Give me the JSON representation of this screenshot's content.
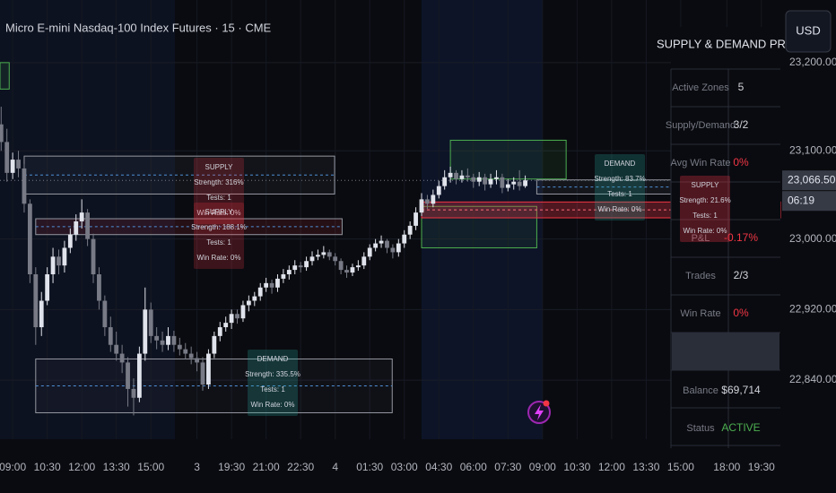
{
  "header": {
    "title": "Micro E-mini Nasdaq-100 Index Futures · 15 · CME",
    "currency": "USD"
  },
  "chart_data": {
    "type": "candlestick",
    "colors": {
      "up": "#e0e3eb",
      "down": "#787b86"
    },
    "xlim": [
      -2.2,
      133.3
    ],
    "xticks": [
      {
        "value": 0,
        "label": "09:00"
      },
      {
        "value": 6,
        "label": "10:30"
      },
      {
        "value": 12,
        "label": "12:00"
      },
      {
        "value": 18,
        "label": "13:30"
      },
      {
        "value": 24,
        "label": "15:00"
      },
      {
        "value": 32,
        "label": "3"
      },
      {
        "value": 38,
        "label": "19:30"
      },
      {
        "value": 44,
        "label": "21:00"
      },
      {
        "value": 50,
        "label": "22:30"
      },
      {
        "value": 56,
        "label": "4"
      },
      {
        "value": 62,
        "label": "01:30"
      },
      {
        "value": 68,
        "label": "03:00"
      },
      {
        "value": 74,
        "label": "04:30"
      },
      {
        "value": 80,
        "label": "06:00"
      },
      {
        "value": 86,
        "label": "07:30"
      },
      {
        "value": 92,
        "label": "09:00"
      },
      {
        "value": 98,
        "label": "10:30"
      },
      {
        "value": 104,
        "label": "12:00"
      },
      {
        "value": 110,
        "label": "13:30"
      },
      {
        "value": 116,
        "label": "15:00"
      },
      {
        "value": 124,
        "label": "18:00"
      },
      {
        "value": 130,
        "label": "19:30"
      }
    ],
    "ylim": [
      22773,
      23271
    ],
    "yticks": [
      {
        "value": 22840,
        "label": "22,840.00"
      },
      {
        "value": 22920,
        "label": "22,920.00"
      },
      {
        "value": 23000,
        "label": "23,000.00"
      },
      {
        "value": 23100,
        "label": "23,100.00"
      },
      {
        "value": 23200,
        "label": "23,200.00"
      }
    ],
    "last_price": {
      "value": 23066.5,
      "label": "23,066.50"
    },
    "countdown": "06:19",
    "ohlc_start": -2,
    "ohlc": [
      [
        23130,
        23150,
        23100,
        23110
      ],
      [
        23110,
        23125,
        23065,
        23075
      ],
      [
        23075,
        23098,
        23068,
        23090
      ],
      [
        23090,
        23100,
        23070,
        23080
      ],
      [
        23080,
        23085,
        23030,
        23040
      ],
      [
        23040,
        23045,
        22950,
        22960
      ],
      [
        22960,
        22968,
        22880,
        22900
      ],
      [
        22900,
        22940,
        22890,
        22930
      ],
      [
        22930,
        22968,
        22925,
        22960
      ],
      [
        22960,
        22990,
        22950,
        22980
      ],
      [
        22980,
        22988,
        22960,
        22970
      ],
      [
        22970,
        22998,
        22962,
        22990
      ],
      [
        22990,
        23012,
        22984,
        23005
      ],
      [
        23005,
        23028,
        22998,
        23020
      ],
      [
        23020,
        23045,
        23012,
        23030
      ],
      [
        23030,
        23034,
        22992,
        23000
      ],
      [
        23000,
        23006,
        22950,
        22960
      ],
      [
        22960,
        22968,
        22920,
        22930
      ],
      [
        22930,
        22936,
        22890,
        22900
      ],
      [
        22900,
        22912,
        22872,
        22880
      ],
      [
        22880,
        22895,
        22862,
        22870
      ],
      [
        22870,
        22880,
        22848,
        22860
      ],
      [
        22860,
        22866,
        22810,
        22830
      ],
      [
        22830,
        22842,
        22800,
        22820
      ],
      [
        22820,
        22878,
        22815,
        22870
      ],
      [
        22870,
        22945,
        22862,
        22920
      ],
      [
        22920,
        22928,
        22882,
        22890
      ],
      [
        22890,
        22900,
        22875,
        22885
      ],
      [
        22885,
        22895,
        22872,
        22880
      ],
      [
        22880,
        22900,
        22874,
        22890
      ],
      [
        22890,
        22896,
        22872,
        22880
      ],
      [
        22880,
        22888,
        22868,
        22875
      ],
      [
        22875,
        22882,
        22864,
        22870
      ],
      [
        22870,
        22878,
        22858,
        22865
      ],
      [
        22865,
        22872,
        22850,
        22860
      ],
      [
        22860,
        22866,
        22828,
        22835
      ],
      [
        22835,
        22875,
        22830,
        22870
      ],
      [
        22870,
        22895,
        22865,
        22890
      ],
      [
        22890,
        22906,
        22884,
        22900
      ],
      [
        22900,
        22912,
        22895,
        22905
      ],
      [
        22905,
        22920,
        22898,
        22915
      ],
      [
        22915,
        22920,
        22904,
        22910
      ],
      [
        22910,
        22930,
        22906,
        22925
      ],
      [
        22925,
        22936,
        22918,
        22930
      ],
      [
        22930,
        22940,
        22924,
        22935
      ],
      [
        22935,
        22950,
        22930,
        22945
      ],
      [
        22945,
        22956,
        22940,
        22950
      ],
      [
        22950,
        22954,
        22938,
        22945
      ],
      [
        22945,
        22960,
        22940,
        22955
      ],
      [
        22955,
        22966,
        22950,
        22960
      ],
      [
        22960,
        22970,
        22954,
        22965
      ],
      [
        22965,
        22976,
        22960,
        22970
      ],
      [
        22970,
        22974,
        22962,
        22968
      ],
      [
        22968,
        22980,
        22964,
        22975
      ],
      [
        22975,
        22986,
        22970,
        22980
      ],
      [
        22980,
        22988,
        22976,
        22982
      ],
      [
        22982,
        22992,
        22978,
        22985
      ],
      [
        22985,
        22988,
        22976,
        22980
      ],
      [
        22980,
        22984,
        22970,
        22975
      ],
      [
        22975,
        22978,
        22960,
        22965
      ],
      [
        22965,
        22970,
        22956,
        22962
      ],
      [
        22962,
        22972,
        22958,
        22968
      ],
      [
        22968,
        22976,
        22964,
        22970
      ],
      [
        22970,
        22985,
        22966,
        22980
      ],
      [
        22980,
        22994,
        22976,
        22990
      ],
      [
        22990,
        23000,
        22986,
        22995
      ],
      [
        22995,
        23004,
        22990,
        22998
      ],
      [
        22998,
        23000,
        22984,
        22990
      ],
      [
        22990,
        22994,
        22978,
        22985
      ],
      [
        22985,
        23000,
        22980,
        22995
      ],
      [
        22995,
        23010,
        22990,
        23005
      ],
      [
        23005,
        23020,
        23000,
        23015
      ],
      [
        23015,
        23036,
        23010,
        23030
      ],
      [
        23030,
        23052,
        23026,
        23045
      ],
      [
        23045,
        23050,
        23034,
        23040
      ],
      [
        23040,
        23056,
        23036,
        23050
      ],
      [
        23050,
        23066,
        23046,
        23060
      ],
      [
        23060,
        23078,
        23056,
        23070
      ],
      [
        23070,
        23082,
        23064,
        23075
      ],
      [
        23075,
        23078,
        23062,
        23068
      ],
      [
        23068,
        23078,
        23064,
        23072
      ],
      [
        23072,
        23080,
        23065,
        23070
      ],
      [
        23070,
        23074,
        23058,
        23065
      ],
      [
        23065,
        23076,
        23060,
        23070
      ],
      [
        23070,
        23074,
        23055,
        23062
      ],
      [
        23062,
        23074,
        23058,
        23068
      ],
      [
        23068,
        23078,
        23062,
        23070
      ],
      [
        23070,
        23074,
        23052,
        23058
      ],
      [
        23058,
        23068,
        23054,
        23062
      ],
      [
        23062,
        23070,
        23056,
        23065
      ],
      [
        23065,
        23078,
        23055,
        23060
      ],
      [
        23060,
        23072,
        23058,
        23066.5
      ]
    ],
    "zones": [
      {
        "top": 23200,
        "bottom": 23170,
        "from": -2.2,
        "to": -0.6,
        "stroke": "#4caf50",
        "fill": "rgba(76,175,80,0.12)",
        "midline": false
      },
      {
        "top": 23094,
        "bottom": 23051,
        "from": 2,
        "to": 55.9,
        "stroke": "#9598a1",
        "fill": "rgba(120,123,134,0.08)",
        "midline": true
      },
      {
        "top": 23023,
        "bottom": 23005,
        "from": 4,
        "to": 57.2,
        "stroke": "#9598a1",
        "fill": "rgba(242,54,69,0.12)",
        "midline": true
      },
      {
        "top": 22864,
        "bottom": 22803,
        "from": 4,
        "to": 65.9,
        "stroke": "#9598a1",
        "fill": "rgba(120,123,134,0.06)",
        "midline": true
      },
      {
        "top": 23112,
        "bottom": 23068,
        "from": 76,
        "to": 96.1,
        "stroke": "#4caf50",
        "fill": "rgba(76,175,80,0.1)",
        "midline": false
      },
      {
        "top": 23037,
        "bottom": 22990,
        "from": 71,
        "to": 91,
        "stroke": "#4caf50",
        "fill": "rgba(76,175,80,0.08)",
        "midline": false
      },
      {
        "top": 23042,
        "bottom": 23024,
        "from": 71,
        "to": 133.3,
        "stroke": "#f23645",
        "fill": "rgba(242,54,69,0.3)",
        "midline": true
      },
      {
        "top": 23067,
        "bottom": 23051,
        "from": 91,
        "to": 126.3,
        "stroke": "#9598a1",
        "fill": "rgba(120,123,134,0.1)",
        "midline": true
      }
    ],
    "zone_labels": [
      {
        "lines": [
          "SUPPLY",
          "Strength: 316%",
          "Tests: 1",
          "Win Rate: 0%"
        ],
        "color": "rgba(242,54,69,0.22)"
      },
      {
        "lines": [
          "SUPPLY",
          "Strength: 188.1%",
          "Tests: 1",
          "Win Rate: 0%"
        ],
        "color": "rgba(242,54,69,0.22)"
      },
      {
        "lines": [
          "DEMAND",
          "Strength: 335.5%",
          "Tests: 1",
          "Win Rate: 0%"
        ],
        "color": "rgba(38,166,154,0.25)"
      },
      {
        "lines": [
          "DEMAND",
          "Strength: 83.7%",
          "Tests: 1",
          "Win Rate: 0%"
        ],
        "color": "rgba(38,166,154,0.25)"
      },
      {
        "lines": [
          "SUPPLY",
          "Strength: 21.6%",
          "Tests: 1",
          "Win Rate: 0%"
        ],
        "color": "rgba(242,54,69,0.3)"
      }
    ]
  },
  "panel": {
    "title": "SUPPLY & DEMAND PRO",
    "rows": [
      {
        "label": "Active Zones",
        "value": "5",
        "color": "#d1d4dc"
      },
      {
        "label": "Supply/Demand",
        "value": "3/2",
        "color": "#d1d4dc"
      },
      {
        "label": "Avg Win Rate",
        "value": "0%",
        "color": "#f23645"
      },
      {
        "label": "P&L",
        "value": "-0.17%",
        "color": "#f23645"
      },
      {
        "label": "Trades",
        "value": "2/3",
        "color": "#d1d4dc"
      },
      {
        "label": "Win Rate",
        "value": "0%",
        "color": "#f23645"
      },
      {
        "label": "Balance",
        "value": "$69,714",
        "color": "#d1d4dc"
      },
      {
        "label": "Status",
        "value": "ACTIVE",
        "color": "#4caf50"
      }
    ]
  }
}
